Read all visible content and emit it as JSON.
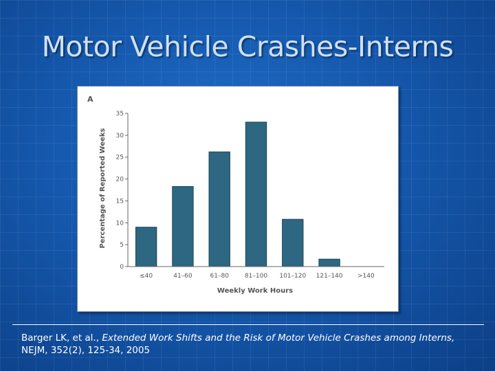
{
  "slide": {
    "title": "Motor Vehicle Crashes-Interns"
  },
  "citation": {
    "authors": "Barger LK, et al.,",
    "article_title": "Extended Work Shifts and the Risk of Motor Vehicle Crashes among Interns,",
    "journal": "NEJM, 352(2), 125-34, 2005"
  },
  "chart_data": {
    "type": "bar",
    "panel_label": "A",
    "categories": [
      "≤40",
      "41–60",
      "61–80",
      "81–100",
      "101–120",
      "121–140",
      ">140"
    ],
    "values": [
      9.0,
      18.3,
      26.2,
      33.0,
      10.8,
      1.7,
      0.0
    ],
    "xlabel": "Weekly Work Hours",
    "ylabel": "Percentage of Reported Weeks",
    "ylim": [
      0,
      35
    ],
    "yticks": [
      0,
      5,
      10,
      15,
      20,
      25,
      30,
      35
    ],
    "ytick_labels": [
      "0",
      "5",
      "10",
      "15",
      "20",
      "25",
      "30",
      "35"
    ],
    "grid": false,
    "bar_color": "#2d6781"
  }
}
